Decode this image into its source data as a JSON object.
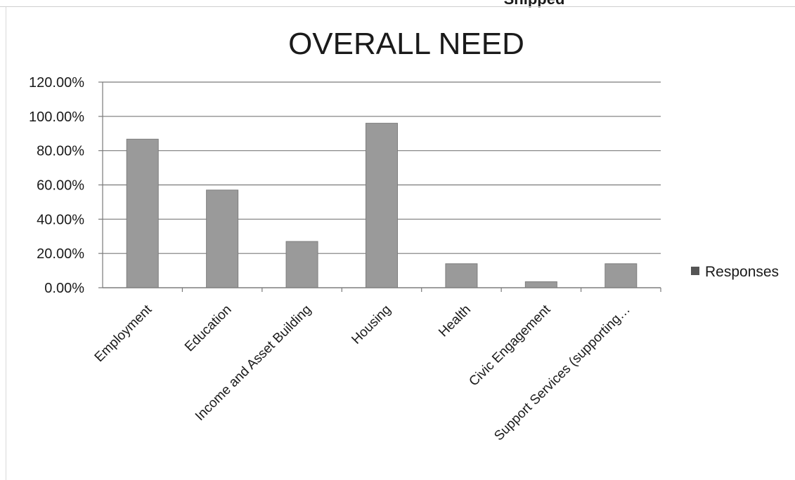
{
  "header_fragment": "Shipped",
  "legend": {
    "label": "Responses",
    "position": "right"
  },
  "colors": {
    "bar": "#9a9a9a",
    "bar_edge": "#7d7d7d",
    "grid": "#7a7a7a",
    "text": "#1a1a1a",
    "legend_swatch": "#555555"
  },
  "chart_data": {
    "type": "bar",
    "title": "OVERALL NEED",
    "xlabel": "",
    "ylabel": "",
    "categories": [
      "Employment",
      "Education",
      "Income and Asset Building",
      "Housing",
      "Health",
      "Civic Engagement",
      "Support Services (supporting…"
    ],
    "series": [
      {
        "name": "Responses",
        "values": [
          86.7,
          57.0,
          27.0,
          96.0,
          14.0,
          3.5,
          14.0
        ]
      }
    ],
    "ylim": [
      0,
      120
    ],
    "yticks": [
      0,
      20,
      40,
      60,
      80,
      100,
      120
    ],
    "ytick_labels": [
      "0.00%",
      "20.00%",
      "40.00%",
      "60.00%",
      "80.00%",
      "100.00%",
      "120.00%"
    ],
    "grid": true
  }
}
